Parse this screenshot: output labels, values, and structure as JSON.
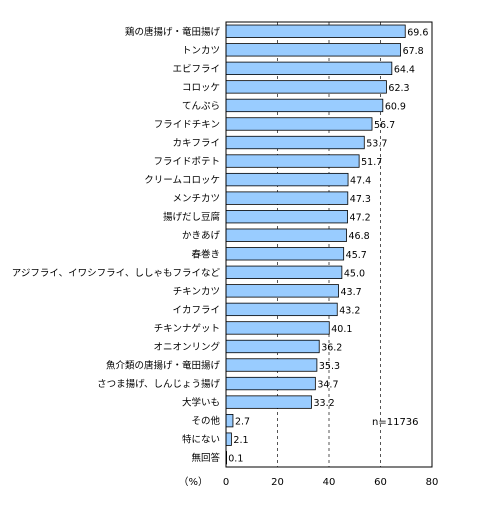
{
  "chart_data": {
    "type": "bar",
    "orientation": "horizontal",
    "categories": [
      "鶏の唐揚げ・竜田揚げ",
      "トンカツ",
      "エビフライ",
      "コロッケ",
      "てんぷら",
      "フライドチキン",
      "カキフライ",
      "フライドポテト",
      "クリームコロッケ",
      "メンチカツ",
      "揚げだし豆腐",
      "かきあげ",
      "春巻き",
      "アジフライ、イワシフライ、ししゃもフライなど",
      "チキンカツ",
      "イカフライ",
      "チキンナゲット",
      "オニオンリング",
      "魚介類の唐揚げ・竜田揚げ",
      "さつま揚げ、しんじょう揚げ",
      "大学いも",
      "その他",
      "特にない",
      "無回答"
    ],
    "values": [
      69.6,
      67.8,
      64.4,
      62.3,
      60.9,
      56.7,
      53.7,
      51.7,
      47.4,
      47.3,
      47.2,
      46.8,
      45.7,
      45.0,
      43.7,
      43.2,
      40.1,
      36.2,
      35.3,
      34.7,
      33.2,
      2.7,
      2.1,
      0.1
    ],
    "value_labels": [
      "69.6",
      "67.8",
      "64.4",
      "62.3",
      "60.9",
      "56.7",
      "53.7",
      "51.7",
      "47.4",
      "47.3",
      "47.2",
      "46.8",
      "45.7",
      "45.0",
      "43.7",
      "43.2",
      "40.1",
      "36.2",
      "35.3",
      "34.7",
      "33.2",
      "2.7",
      "2.1",
      "0.1"
    ],
    "xlim": [
      0,
      80
    ],
    "x_ticks": [
      "0",
      "20",
      "40",
      "60",
      "80"
    ],
    "x_unit_label": "（%）",
    "annotation": "n=11736",
    "grid": "dashed vertical lines at 20, 40, 60",
    "colors": {
      "bar_fill": "#99ccff",
      "bar_stroke": "#000000",
      "grid": "#555555"
    }
  }
}
